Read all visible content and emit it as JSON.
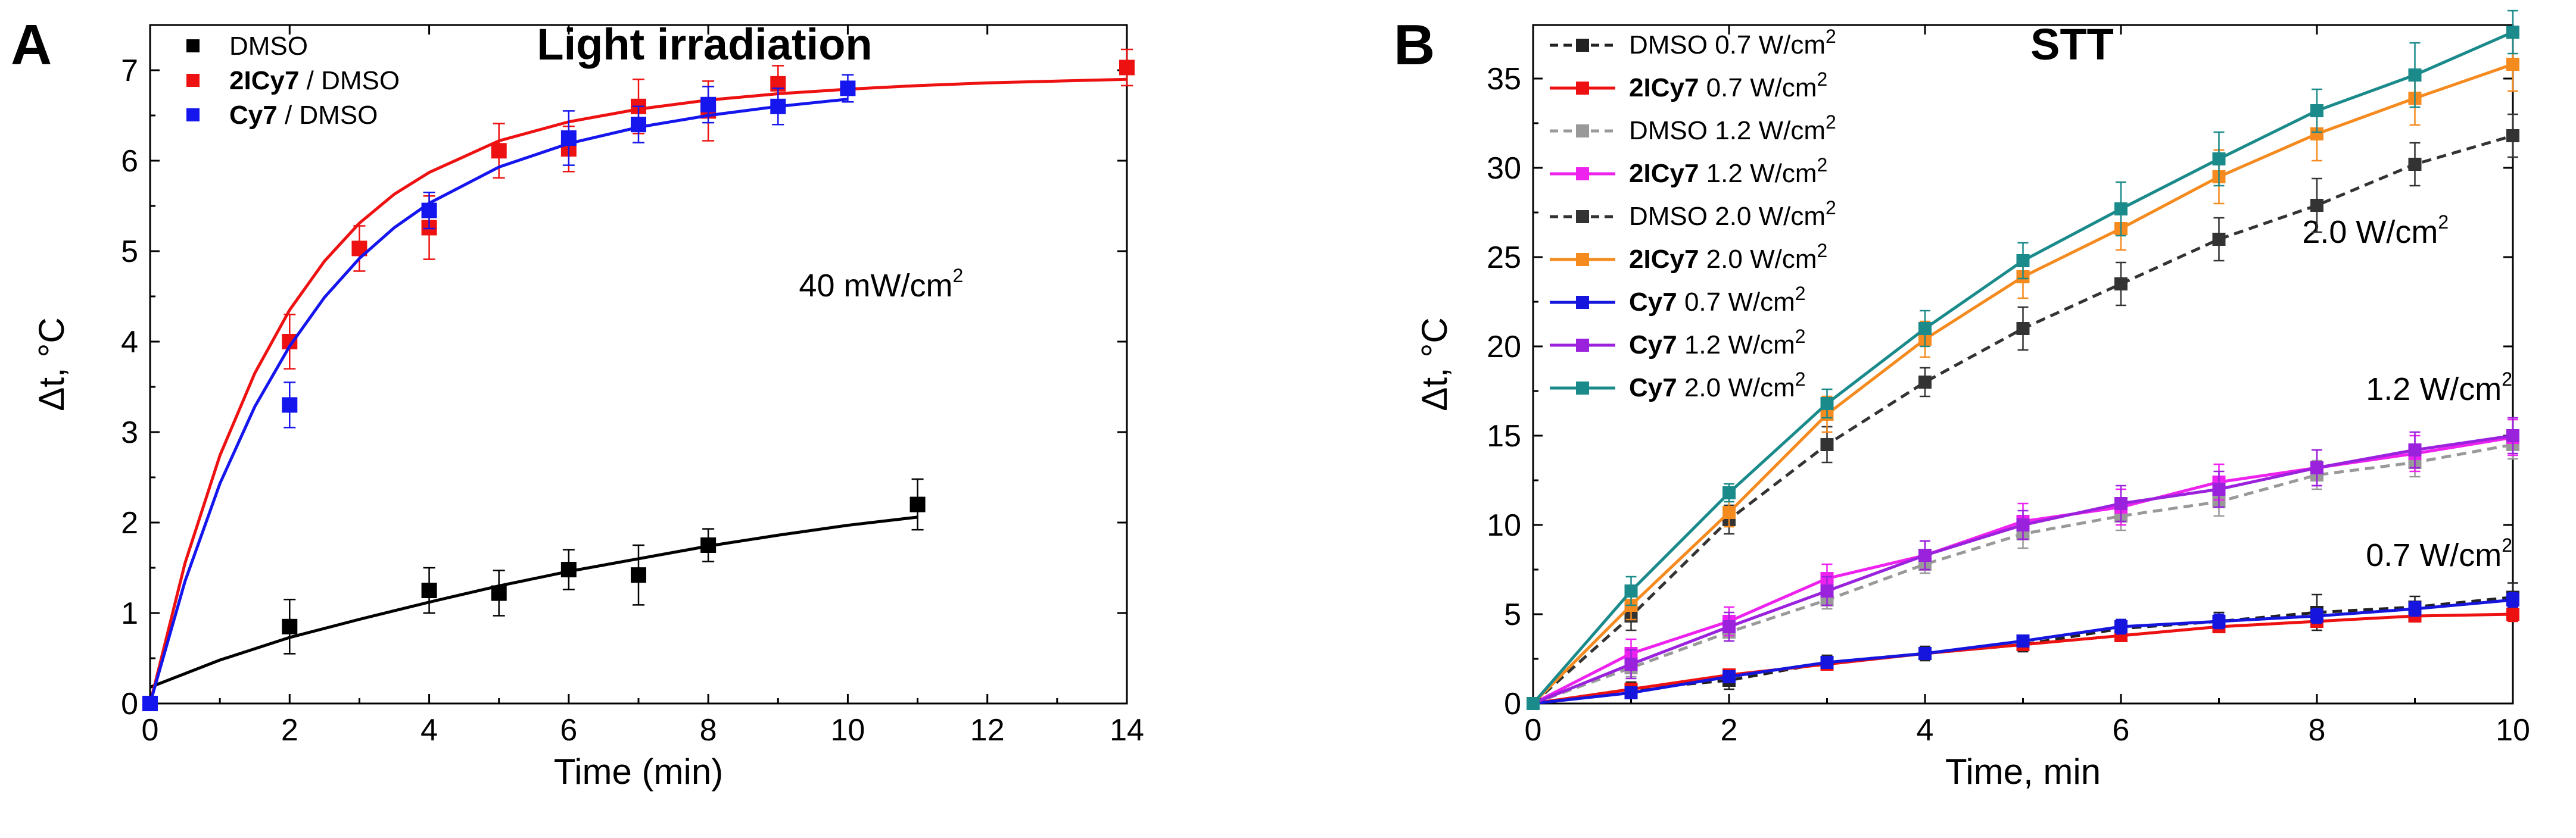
{
  "chart_data": [
    {
      "panel": "A",
      "type": "scatter",
      "title": "Light irradiation",
      "xlabel": "Time (min)",
      "ylabel": "Δt, °C",
      "xlim": [
        0,
        14
      ],
      "ylim": [
        0,
        7.5
      ],
      "xticks": [
        0,
        2,
        4,
        6,
        8,
        10,
        12,
        14
      ],
      "yticks": [
        0,
        1,
        2,
        3,
        4,
        5,
        6,
        7
      ],
      "annotation": {
        "text": "40 mW/cm",
        "sup": "2",
        "at": [
          9.3,
          4.5
        ]
      },
      "legend_position": "top-left",
      "series": [
        {
          "name_bold": "",
          "name": "DMSO",
          "color": "#000000",
          "marker": "square",
          "x": [
            0,
            2,
            4,
            5,
            6,
            7,
            8,
            11
          ],
          "y": [
            0,
            0.85,
            1.25,
            1.22,
            1.48,
            1.42,
            1.75,
            2.2
          ],
          "err": [
            0.05,
            0.3,
            0.25,
            0.25,
            0.22,
            0.33,
            0.18,
            0.28
          ],
          "fit": {
            "x": [
              0,
              1,
              2,
              3,
              4,
              5,
              6,
              7,
              8,
              9,
              10,
              11
            ],
            "y": [
              0.18,
              0.48,
              0.73,
              0.93,
              1.12,
              1.3,
              1.46,
              1.6,
              1.74,
              1.86,
              1.97,
              2.06
            ]
          }
        },
        {
          "name_bold": "2ICy7",
          "name": " / DMSO",
          "color": "#ee1111",
          "marker": "square",
          "x": [
            0,
            2,
            3,
            4,
            5,
            6,
            7,
            8,
            9,
            14
          ],
          "y": [
            0,
            4.0,
            5.03,
            5.26,
            6.11,
            6.13,
            6.6,
            6.55,
            6.85,
            7.03
          ],
          "err": [
            0.05,
            0.3,
            0.25,
            0.35,
            0.3,
            0.25,
            0.3,
            0.33,
            0.2,
            0.2
          ],
          "fit": {
            "x": [
              0,
              0.5,
              1,
              1.5,
              2,
              2.5,
              3,
              3.5,
              4,
              5,
              6,
              7,
              8,
              9,
              10,
              11,
              12,
              13,
              14
            ],
            "y": [
              0,
              1.55,
              2.74,
              3.65,
              4.35,
              4.89,
              5.31,
              5.63,
              5.87,
              6.22,
              6.43,
              6.57,
              6.67,
              6.74,
              6.79,
              6.83,
              6.86,
              6.88,
              6.9
            ]
          }
        },
        {
          "name_bold": "Cy7",
          "name": " / DMSO",
          "color": "#1515ee",
          "marker": "square",
          "x": [
            0,
            2,
            4,
            6,
            7,
            8,
            9,
            10
          ],
          "y": [
            0,
            3.3,
            5.45,
            6.25,
            6.4,
            6.62,
            6.6,
            6.8
          ],
          "err": [
            0.05,
            0.25,
            0.2,
            0.3,
            0.2,
            0.2,
            0.2,
            0.15
          ],
          "fit": {
            "x": [
              0,
              0.5,
              1,
              1.5,
              2,
              2.5,
              3,
              3.5,
              4,
              5,
              6,
              7,
              8,
              9,
              10
            ],
            "y": [
              0,
              1.35,
              2.43,
              3.28,
              3.95,
              4.49,
              4.92,
              5.26,
              5.53,
              5.93,
              6.19,
              6.37,
              6.5,
              6.6,
              6.68
            ]
          }
        }
      ]
    },
    {
      "panel": "B",
      "type": "line",
      "title": "STT",
      "xlabel": "Time, min",
      "ylabel": "Δt, °C",
      "xlim": [
        0,
        10
      ],
      "ylim": [
        0,
        38
      ],
      "xticks": [
        0,
        2,
        4,
        6,
        8,
        10
      ],
      "yticks": [
        0,
        5,
        10,
        15,
        20,
        25,
        30,
        35
      ],
      "legend_position": "top-left",
      "unit_label": "W/cm",
      "unit_sup": "2",
      "annotations": [
        {
          "text": "2.0 W/cm",
          "sup": "2",
          "at": [
            7.85,
            25.8
          ]
        },
        {
          "text": "1.2 W/cm",
          "sup": "2",
          "at": [
            8.5,
            17.0
          ]
        },
        {
          "text": "0.7 W/cm",
          "sup": "2",
          "at": [
            8.5,
            7.7
          ]
        }
      ],
      "x": [
        0,
        1,
        2,
        3,
        4,
        5,
        6,
        7,
        8,
        9,
        10
      ],
      "series": [
        {
          "name_bold": "",
          "name": "DMSO",
          "power": "0.7",
          "color": "#222222",
          "dash": true,
          "y": [
            0,
            0.8,
            1.3,
            2.3,
            2.8,
            3.3,
            4.2,
            4.6,
            5.1,
            5.4,
            5.95
          ],
          "err": [
            0,
            0.4,
            0.5,
            0.4,
            0.4,
            0.4,
            0.5,
            0.5,
            1.0,
            0.6,
            0.8
          ]
        },
        {
          "name_bold": "2ICy7",
          "name": "",
          "power": "0.7",
          "color": "#ee1111",
          "dash": false,
          "y": [
            0,
            0.8,
            1.6,
            2.2,
            2.8,
            3.3,
            3.8,
            4.3,
            4.6,
            4.9,
            5.0
          ],
          "err": [
            0,
            0.3,
            0.3,
            0.3,
            0.3,
            0.3,
            0.3,
            0.3,
            0.3,
            0.3,
            0.4
          ]
        },
        {
          "name_bold": "",
          "name": "DMSO",
          "power": "1.2",
          "color": "#999999",
          "dash": true,
          "y": [
            0,
            2.0,
            4.0,
            5.8,
            7.8,
            9.5,
            10.5,
            11.3,
            12.8,
            13.5,
            14.5
          ],
          "err": [
            0,
            0.5,
            0.5,
            0.5,
            0.5,
            0.8,
            0.8,
            0.8,
            0.8,
            0.8,
            0.8
          ]
        },
        {
          "name_bold": "2ICy7",
          "name": "",
          "power": "1.2",
          "color": "#ee22ee",
          "dash": false,
          "y": [
            0,
            2.8,
            4.6,
            7.0,
            8.3,
            10.2,
            11.0,
            12.4,
            13.2,
            14.0,
            14.9
          ],
          "err": [
            0,
            0.8,
            0.8,
            0.8,
            0.8,
            1.0,
            1.0,
            1.0,
            1.0,
            1.0,
            1.0
          ]
        },
        {
          "name_bold": "",
          "name": "DMSO",
          "power": "2.0",
          "color": "#333333",
          "dash": true,
          "y": [
            0,
            4.9,
            10.3,
            14.5,
            18.0,
            21.0,
            23.5,
            26.0,
            27.9,
            30.2,
            31.8
          ],
          "err": [
            0,
            0.8,
            0.8,
            1.0,
            0.8,
            1.2,
            1.2,
            1.2,
            1.5,
            1.2,
            1.2
          ]
        },
        {
          "name_bold": "2ICy7",
          "name": "",
          "power": "2.0",
          "color": "#f58a1f",
          "dash": false,
          "y": [
            0,
            5.5,
            10.7,
            16.2,
            20.4,
            23.9,
            26.6,
            29.5,
            31.9,
            33.9,
            35.8
          ],
          "err": [
            0,
            0.8,
            0.8,
            1.0,
            1.0,
            1.2,
            1.2,
            1.5,
            1.5,
            1.5,
            1.5
          ]
        },
        {
          "name_bold": "Cy7",
          "name": "",
          "power": "0.7",
          "color": "#1515dd",
          "dash": false,
          "y": [
            0,
            0.6,
            1.5,
            2.3,
            2.8,
            3.5,
            4.3,
            4.6,
            4.9,
            5.3,
            5.8
          ],
          "err": [
            0,
            0.3,
            0.3,
            0.3,
            0.3,
            0.3,
            0.4,
            0.4,
            0.4,
            0.4,
            0.4
          ]
        },
        {
          "name_bold": "Cy7",
          "name": "",
          "power": "1.2",
          "color": "#9a22dd",
          "dash": false,
          "y": [
            0,
            2.2,
            4.3,
            6.3,
            8.3,
            10.0,
            11.2,
            12.0,
            13.2,
            14.2,
            15.0
          ],
          "err": [
            0,
            0.8,
            0.8,
            0.8,
            0.8,
            0.8,
            1.0,
            1.0,
            1.0,
            1.0,
            1.0
          ]
        },
        {
          "name_bold": "Cy7",
          "name": "",
          "power": "2.0",
          "color": "#1a8a8a",
          "dash": false,
          "y": [
            0,
            6.3,
            11.8,
            16.8,
            21.0,
            24.8,
            27.7,
            30.5,
            33.2,
            35.2,
            37.6
          ],
          "err": [
            0,
            0.8,
            0.5,
            0.8,
            1.0,
            1.0,
            1.5,
            1.5,
            1.2,
            1.8,
            1.2
          ]
        }
      ]
    }
  ]
}
